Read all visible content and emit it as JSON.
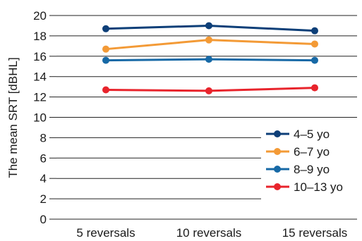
{
  "chart_data": {
    "type": "line",
    "categories": [
      "5 reversals",
      "10 reversals",
      "15 reversals"
    ],
    "ylabel": "The mean SRT [dBHL]",
    "ylim": [
      0,
      20
    ],
    "yticks": [
      0,
      2,
      4,
      6,
      8,
      10,
      12,
      14,
      16,
      18,
      20
    ],
    "grid": "horizontal",
    "legend_position": "bottom-right",
    "series": [
      {
        "name": "4–5 yo",
        "color": "#0d3f78",
        "values": [
          18.7,
          19.0,
          18.5
        ]
      },
      {
        "name": "6–7 yo",
        "color": "#f39a36",
        "values": [
          16.7,
          17.6,
          17.2
        ]
      },
      {
        "name": "8–9 yo",
        "color": "#1769a6",
        "values": [
          15.6,
          15.7,
          15.6
        ]
      },
      {
        "name": "10–13 yo",
        "color": "#e8242c",
        "values": [
          12.7,
          12.6,
          12.9
        ]
      }
    ]
  }
}
